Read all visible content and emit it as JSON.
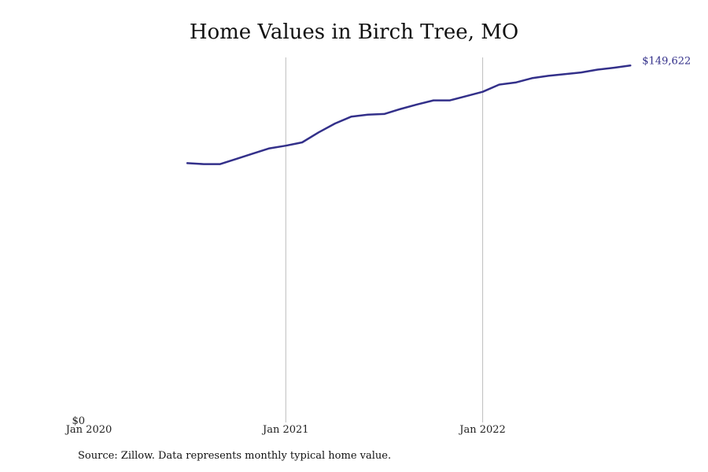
{
  "chart_data": {
    "type": "line",
    "title": "Home Values in Birch Tree, MO",
    "xlabel": "",
    "ylabel": "",
    "ylim": [
      0,
      154000
    ],
    "x_range": [
      "2020-01",
      "2022-12"
    ],
    "x_ticks": [
      {
        "label": "Jan 2020",
        "date": "2020-01"
      },
      {
        "label": "Jan 2021",
        "date": "2021-01"
      },
      {
        "label": "Jan 2022",
        "date": "2022-01"
      }
    ],
    "y_ticks": [
      {
        "label": "$0",
        "value": 0
      }
    ],
    "grid": "vertical lines at Jan 2021 and Jan 2022",
    "line_color": "#33308a",
    "end_label": "$149,622",
    "series": [
      {
        "x": [
          "2020-07",
          "2020-08",
          "2020-09",
          "2020-10",
          "2020-11",
          "2020-12",
          "2021-01",
          "2021-02",
          "2021-03",
          "2021-04",
          "2021-05",
          "2021-06",
          "2021-07",
          "2021-08",
          "2021-09",
          "2021-10",
          "2021-11",
          "2021-12",
          "2022-01",
          "2022-02",
          "2022-03",
          "2022-04",
          "2022-05",
          "2022-06",
          "2022-07",
          "2022-08",
          "2022-09",
          "2022-10"
        ],
        "values": [
          108700,
          108300,
          108300,
          110500,
          112700,
          114900,
          116000,
          117400,
          121600,
          125300,
          128200,
          129000,
          129300,
          131400,
          133300,
          135000,
          135000,
          136800,
          138600,
          141600,
          142500,
          144300,
          145300,
          146000,
          146700,
          147900,
          148700,
          149622
        ]
      }
    ]
  },
  "source_note": "Source: Zillow. Data represents monthly typical home value."
}
